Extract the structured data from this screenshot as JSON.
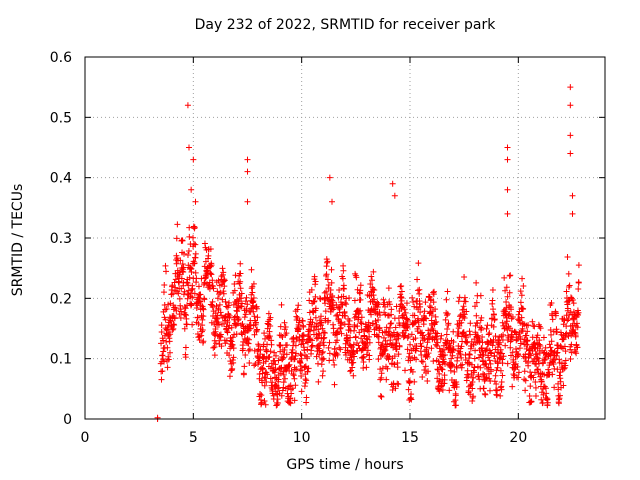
{
  "chart_data": {
    "type": "scatter",
    "title": "Day 232 of 2022, SRMTID for receiver park",
    "xlabel": "GPS time / hours",
    "ylabel": "SRMTID / TECUs",
    "xlim": [
      0,
      24
    ],
    "ylim": [
      0,
      0.6
    ],
    "xticks": [
      0,
      5,
      10,
      15,
      20
    ],
    "xtick_labels": [
      "0",
      "5",
      "10",
      "15",
      "20"
    ],
    "yticks": [
      0,
      0.1,
      0.2,
      0.3,
      0.4,
      0.5,
      0.6
    ],
    "ytick_labels": [
      "0",
      "0.1",
      "0.2",
      "0.3",
      "0.4",
      "0.5",
      "0.6"
    ],
    "grid": true,
    "marker": "+",
    "color": "#ff0000",
    "outlier_points": [
      [
        3.35,
        0.0
      ],
      [
        3.35,
        0.002
      ]
    ],
    "profile": [
      [
        3.5,
        0.08
      ],
      [
        3.7,
        0.14
      ],
      [
        4.0,
        0.19
      ],
      [
        4.4,
        0.22
      ],
      [
        4.8,
        0.23
      ],
      [
        5.2,
        0.2
      ],
      [
        5.6,
        0.22
      ],
      [
        6.0,
        0.2
      ],
      [
        6.4,
        0.16
      ],
      [
        6.8,
        0.15
      ],
      [
        7.3,
        0.18
      ],
      [
        7.7,
        0.15
      ],
      [
        8.0,
        0.11
      ],
      [
        8.5,
        0.09
      ],
      [
        9.0,
        0.08
      ],
      [
        9.5,
        0.09
      ],
      [
        10.0,
        0.12
      ],
      [
        10.5,
        0.14
      ],
      [
        11.0,
        0.16
      ],
      [
        11.5,
        0.17
      ],
      [
        12.0,
        0.15
      ],
      [
        12.5,
        0.13
      ],
      [
        13.0,
        0.16
      ],
      [
        13.5,
        0.17
      ],
      [
        14.0,
        0.1
      ],
      [
        14.4,
        0.15
      ],
      [
        14.8,
        0.14
      ],
      [
        15.2,
        0.13
      ],
      [
        15.6,
        0.15
      ],
      [
        16.0,
        0.15
      ],
      [
        16.5,
        0.1
      ],
      [
        17.0,
        0.1
      ],
      [
        17.5,
        0.13
      ],
      [
        18.0,
        0.1
      ],
      [
        18.5,
        0.12
      ],
      [
        19.0,
        0.1
      ],
      [
        19.5,
        0.15
      ],
      [
        20.0,
        0.14
      ],
      [
        20.5,
        0.11
      ],
      [
        21.0,
        0.09
      ],
      [
        21.5,
        0.1
      ],
      [
        22.0,
        0.12
      ],
      [
        22.5,
        0.17
      ],
      [
        22.8,
        0.19
      ]
    ],
    "peaks": [
      [
        4.75,
        0.52
      ],
      [
        4.8,
        0.45
      ],
      [
        4.9,
        0.38
      ],
      [
        5.0,
        0.43
      ],
      [
        5.1,
        0.36
      ],
      [
        7.5,
        0.43
      ],
      [
        7.5,
        0.41
      ],
      [
        7.5,
        0.36
      ],
      [
        11.3,
        0.4
      ],
      [
        11.4,
        0.36
      ],
      [
        14.2,
        0.39
      ],
      [
        14.3,
        0.37
      ],
      [
        19.5,
        0.45
      ],
      [
        19.5,
        0.43
      ],
      [
        19.5,
        0.38
      ],
      [
        19.5,
        0.34
      ],
      [
        22.4,
        0.55
      ],
      [
        22.4,
        0.52
      ],
      [
        22.4,
        0.47
      ],
      [
        22.4,
        0.44
      ],
      [
        22.5,
        0.37
      ],
      [
        22.5,
        0.34
      ]
    ]
  }
}
